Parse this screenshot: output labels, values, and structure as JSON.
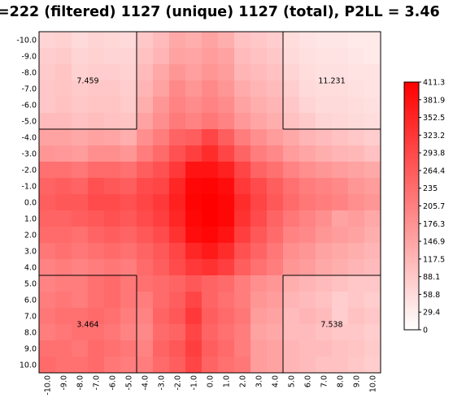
{
  "title": "=222 (filtered) 1127 (unique) 1127 (total), P2LL = 3.46",
  "chart_data": {
    "type": "heatmap",
    "title": "=222 (filtered) 1127 (unique) 1127 (total), P2LL = 3.46",
    "x_labels": [
      "-10.0",
      "-9.0",
      "-8.0",
      "-7.0",
      "-6.0",
      "-5.0",
      "-4.0",
      "-3.0",
      "-2.0",
      "-1.0",
      "0.0",
      "1.0",
      "2.0",
      "3.0",
      "4.0",
      "5.0",
      "6.0",
      "7.0",
      "8.0",
      "9.0",
      "10.0"
    ],
    "y_labels": [
      "-10.0",
      "-9.0",
      "-8.0",
      "-7.0",
      "-6.0",
      "-5.0",
      "-4.0",
      "-3.0",
      "-2.0",
      "-1.0",
      "0.0",
      "1.0",
      "2.0",
      "3.0",
      "4.0",
      "5.0",
      "6.0",
      "7.0",
      "8.0",
      "9.0",
      "10.0"
    ],
    "colorbar": {
      "ticks": [
        "411.3",
        "381.9",
        "352.5",
        "323.2",
        "293.8",
        "264.4",
        "235",
        "205.7",
        "176.3",
        "146.9",
        "117.5",
        "88.1",
        "58.8",
        "29.4",
        "0"
      ],
      "min": 0,
      "max": 411.3,
      "color_low": "#ffffff",
      "color_high": "#ff0000"
    },
    "quadrant_values": {
      "top_left": "7.459",
      "top_right": "11.231",
      "bottom_left": "3.464",
      "bottom_right": "7.538"
    },
    "values": [
      [
        70,
        75,
        60,
        70,
        65,
        60,
        90,
        110,
        140,
        130,
        150,
        130,
        100,
        90,
        80,
        55,
        45,
        40,
        40,
        35,
        35
      ],
      [
        80,
        85,
        70,
        75,
        70,
        70,
        100,
        120,
        150,
        145,
        160,
        150,
        110,
        100,
        90,
        60,
        50,
        45,
        45,
        40,
        35
      ],
      [
        85,
        95,
        75,
        80,
        80,
        75,
        110,
        140,
        170,
        155,
        170,
        160,
        120,
        110,
        100,
        70,
        55,
        50,
        50,
        45,
        45
      ],
      [
        90,
        95,
        85,
        90,
        90,
        80,
        120,
        150,
        190,
        170,
        190,
        170,
        135,
        120,
        110,
        80,
        60,
        55,
        55,
        50,
        45
      ],
      [
        90,
        100,
        90,
        95,
        95,
        85,
        130,
        170,
        200,
        185,
        200,
        185,
        150,
        130,
        120,
        90,
        70,
        60,
        60,
        55,
        50
      ],
      [
        110,
        110,
        100,
        105,
        100,
        95,
        150,
        180,
        215,
        200,
        220,
        200,
        165,
        145,
        130,
        100,
        85,
        70,
        65,
        60,
        55
      ],
      [
        150,
        150,
        140,
        150,
        145,
        130,
        180,
        210,
        250,
        260,
        300,
        260,
        210,
        180,
        160,
        140,
        120,
        110,
        100,
        90,
        80
      ],
      [
        170,
        165,
        160,
        180,
        180,
        170,
        210,
        240,
        280,
        310,
        340,
        300,
        250,
        210,
        190,
        160,
        145,
        130,
        120,
        115,
        100
      ],
      [
        230,
        230,
        220,
        240,
        240,
        230,
        260,
        280,
        320,
        380,
        380,
        360,
        300,
        250,
        230,
        200,
        180,
        170,
        160,
        150,
        140
      ],
      [
        250,
        260,
        250,
        280,
        270,
        260,
        290,
        300,
        350,
        400,
        405,
        390,
        320,
        290,
        260,
        230,
        210,
        200,
        190,
        170,
        160
      ],
      [
        260,
        270,
        270,
        290,
        290,
        280,
        300,
        320,
        360,
        405,
        411,
        400,
        340,
        300,
        270,
        240,
        220,
        210,
        200,
        180,
        170
      ],
      [
        250,
        250,
        260,
        270,
        280,
        270,
        290,
        310,
        350,
        400,
        411,
        400,
        330,
        290,
        250,
        220,
        200,
        180,
        150,
        160,
        140
      ],
      [
        240,
        240,
        230,
        250,
        260,
        250,
        270,
        290,
        330,
        390,
        400,
        380,
        310,
        270,
        240,
        200,
        190,
        170,
        160,
        150,
        130
      ],
      [
        220,
        230,
        220,
        230,
        240,
        230,
        250,
        270,
        300,
        350,
        370,
        340,
        280,
        250,
        220,
        180,
        170,
        150,
        140,
        130,
        120
      ],
      [
        200,
        210,
        200,
        210,
        220,
        210,
        240,
        260,
        290,
        320,
        330,
        310,
        260,
        230,
        210,
        170,
        160,
        140,
        130,
        120,
        110
      ],
      [
        200,
        210,
        210,
        230,
        240,
        220,
        230,
        240,
        250,
        270,
        250,
        240,
        210,
        180,
        170,
        130,
        120,
        110,
        100,
        90,
        90
      ],
      [
        210,
        220,
        210,
        230,
        240,
        220,
        210,
        240,
        260,
        300,
        250,
        230,
        210,
        170,
        160,
        120,
        110,
        100,
        80,
        90,
        80
      ],
      [
        220,
        230,
        230,
        240,
        230,
        210,
        200,
        250,
        270,
        320,
        260,
        240,
        220,
        160,
        150,
        110,
        120,
        110,
        80,
        100,
        90
      ],
      [
        210,
        220,
        230,
        230,
        220,
        200,
        190,
        240,
        250,
        300,
        250,
        230,
        210,
        150,
        140,
        110,
        110,
        100,
        90,
        90,
        80
      ],
      [
        230,
        230,
        220,
        240,
        230,
        220,
        200,
        250,
        270,
        310,
        260,
        240,
        210,
        160,
        150,
        120,
        110,
        110,
        100,
        95,
        85
      ],
      [
        240,
        230,
        230,
        240,
        220,
        210,
        210,
        240,
        260,
        300,
        250,
        230,
        220,
        160,
        150,
        120,
        110,
        100,
        100,
        90,
        80
      ]
    ]
  }
}
